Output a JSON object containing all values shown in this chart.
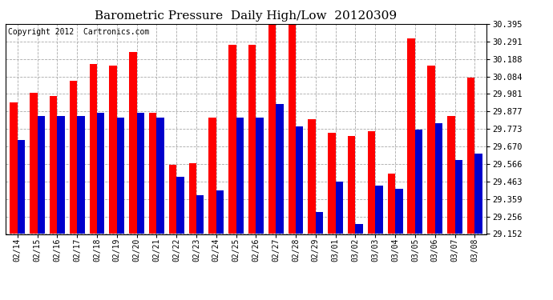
{
  "title": "Barometric Pressure  Daily High/Low  20120309",
  "copyright": "Copyright 2012  Cartronics.com",
  "dates": [
    "02/14",
    "02/15",
    "02/16",
    "02/17",
    "02/18",
    "02/19",
    "02/20",
    "02/21",
    "02/22",
    "02/23",
    "02/24",
    "02/25",
    "02/26",
    "02/27",
    "02/28",
    "02/29",
    "03/01",
    "03/02",
    "03/03",
    "03/04",
    "03/05",
    "03/06",
    "03/07",
    "03/08"
  ],
  "high": [
    29.93,
    29.99,
    29.97,
    30.06,
    30.16,
    30.15,
    30.23,
    29.87,
    29.56,
    29.57,
    29.84,
    30.27,
    30.27,
    30.39,
    30.39,
    29.83,
    29.75,
    29.73,
    29.76,
    29.51,
    30.31,
    30.15,
    29.85,
    30.08
  ],
  "low": [
    29.71,
    29.85,
    29.85,
    29.85,
    29.87,
    29.84,
    29.87,
    29.84,
    29.49,
    29.38,
    29.41,
    29.84,
    29.84,
    29.92,
    29.79,
    29.28,
    29.46,
    29.21,
    29.44,
    29.42,
    29.77,
    29.81,
    29.59,
    29.63
  ],
  "high_color": "#ff0000",
  "low_color": "#0000cc",
  "bg_color": "#ffffff",
  "grid_color": "#aaaaaa",
  "yticks": [
    29.152,
    29.256,
    29.359,
    29.463,
    29.566,
    29.67,
    29.773,
    29.877,
    29.981,
    30.084,
    30.188,
    30.291,
    30.395
  ],
  "ymin": 29.152,
  "ymax": 30.395,
  "title_fontsize": 11,
  "copyright_fontsize": 7,
  "bar_width": 0.38
}
